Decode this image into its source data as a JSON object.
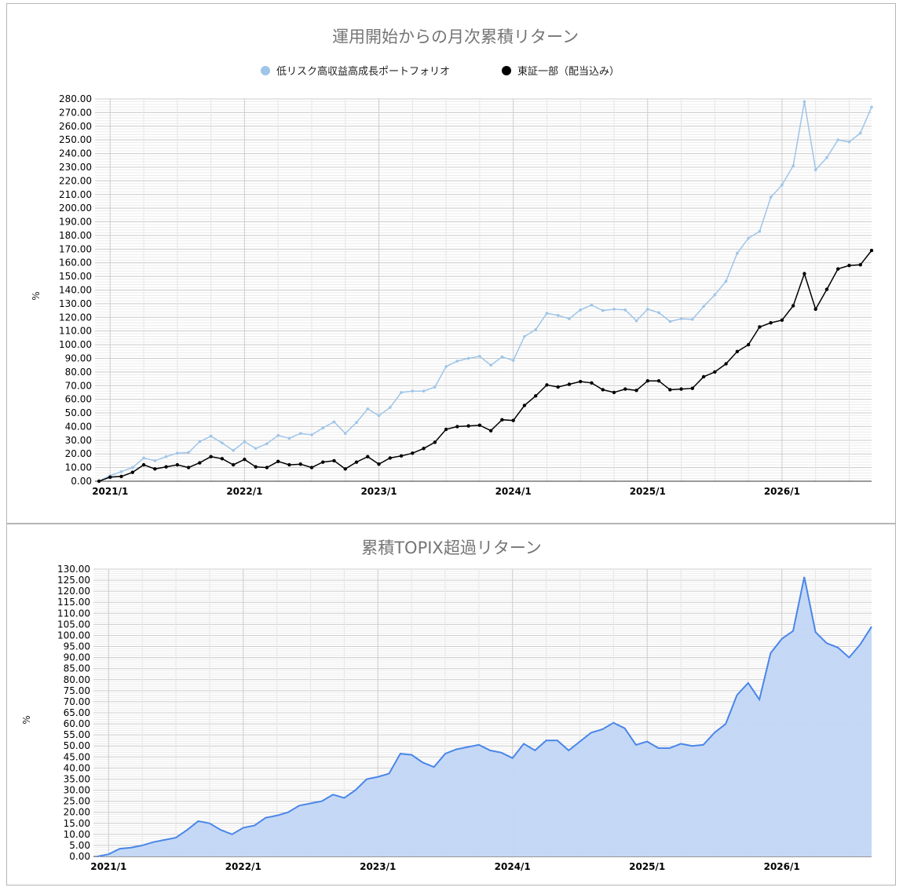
{
  "chart_data": [
    {
      "type": "line",
      "title": "運用開始からの月次累積リターン",
      "ylabel": "%",
      "ylim": [
        0,
        280
      ],
      "ytick_step": 10,
      "x_start": "2020/12",
      "x_tick_labels": [
        "2021/1",
        "2022/1",
        "2023/1",
        "2024/1",
        "2025/1",
        "2026/1"
      ],
      "legend_position": "top",
      "grid": true,
      "series": [
        {
          "name": "低リスク高収益高成長ポートフォリオ",
          "color": "#9fc5e8",
          "values": [
            0,
            4,
            7,
            10,
            17,
            15,
            18,
            20.5,
            21,
            29,
            33,
            28,
            22.5,
            29,
            24,
            27.5,
            33.5,
            31.5,
            35,
            34,
            39,
            43.5,
            35,
            43,
            53,
            48,
            54,
            65,
            66,
            66,
            69,
            84,
            88,
            90,
            91.5,
            85,
            91,
            88.5,
            106,
            111,
            123,
            121.5,
            119,
            125.5,
            129,
            125,
            126,
            125.5,
            117.5,
            126,
            123.5,
            117,
            119,
            118.5,
            128,
            136.5,
            146.5,
            167,
            178,
            183,
            208,
            217,
            231,
            278,
            228,
            237,
            250,
            248.5,
            255,
            274
          ]
        },
        {
          "name": "東証一部（配当込み）",
          "color": "#000000",
          "values": [
            0,
            3,
            3.5,
            6.5,
            12,
            9,
            10.5,
            12,
            10,
            13.5,
            18,
            16.5,
            12,
            16,
            10.5,
            10,
            14.5,
            12,
            12.5,
            10,
            14,
            15,
            9,
            14,
            18,
            12.5,
            17,
            18.5,
            20.5,
            24,
            28.5,
            38,
            40,
            40.5,
            41,
            37,
            45,
            44.5,
            55.5,
            62.5,
            70.5,
            69,
            71,
            73,
            72,
            67,
            65,
            67.5,
            66.5,
            73.5,
            73.5,
            67,
            67.5,
            68,
            76.5,
            80,
            86,
            95,
            100,
            113,
            116,
            118,
            128.5,
            152,
            126,
            140.5,
            155.5,
            158,
            158.5,
            169
          ]
        }
      ]
    },
    {
      "type": "area",
      "title": "累積TOPIX超過リターン",
      "ylabel": "%",
      "ylim": [
        0,
        130
      ],
      "ytick_step": 5,
      "x_start": "2020/12",
      "x_tick_labels": [
        "2021/1",
        "2022/1",
        "2023/1",
        "2024/1",
        "2025/1",
        "2026/1"
      ],
      "grid": true,
      "series": [
        {
          "name": "累積TOPIX超過リターン",
          "color": "#4a86e8",
          "fill": "#c2d7f5",
          "values": [
            0,
            1,
            3.5,
            4,
            5,
            6.5,
            7.5,
            8.5,
            12,
            16,
            15,
            12,
            10,
            13,
            14,
            17.5,
            18.5,
            20,
            23,
            24,
            25,
            28,
            26.5,
            30,
            35,
            36,
            37.5,
            46.5,
            46,
            42.5,
            40.5,
            46.5,
            48.5,
            49.5,
            50.5,
            48,
            47,
            44.5,
            51,
            48,
            52.5,
            52.5,
            48,
            52,
            56,
            57.5,
            60.5,
            58,
            50.5,
            52,
            49,
            49,
            51,
            50,
            50.5,
            56,
            60,
            73,
            78.5,
            71,
            92,
            98.5,
            102,
            126.5,
            101.5,
            96.5,
            94.5,
            90,
            96,
            104
          ]
        }
      ]
    }
  ]
}
